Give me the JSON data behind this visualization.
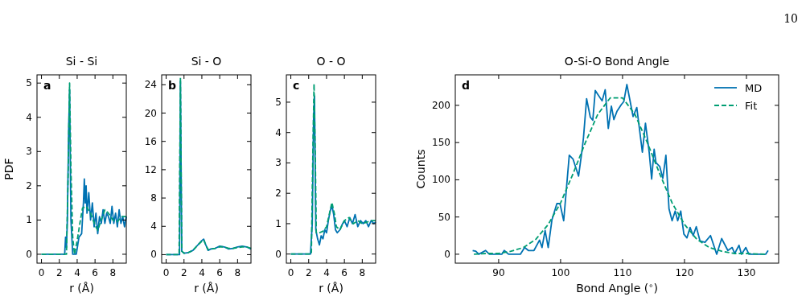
{
  "chart_data": [
    {
      "type": "line",
      "title": "Si - Si",
      "xlabel": "r (Å)",
      "ylabel": "PDF",
      "annotations": [
        "a"
      ],
      "xlim": [
        -0.5,
        9.5
      ],
      "xticks": [
        0,
        2,
        4,
        6,
        8
      ],
      "ylim": [
        -0.26,
        5.24
      ],
      "yticks": [
        0,
        1,
        2,
        3,
        4,
        5
      ],
      "series": [
        {
          "color": "#0072b2",
          "line_style": "solid",
          "x": [
            0,
            2.6,
            2.7,
            2.8,
            2.9,
            3.05,
            3.15,
            3.3,
            3.5,
            3.9,
            4.2,
            4.5,
            4.7,
            4.8,
            4.9,
            5.0,
            5.1,
            5.3,
            5.5,
            5.7,
            5.9,
            6.1,
            6.3,
            6.5,
            6.7,
            6.9,
            7.1,
            7.3,
            7.5,
            7.7,
            7.9,
            8.1,
            8.3,
            8.5,
            8.7,
            8.9,
            9.1,
            9.3,
            9.5
          ],
          "values": [
            0,
            0,
            0.5,
            0.2,
            1,
            3.7,
            4.8,
            1,
            0,
            0,
            0.5,
            0.6,
            1.5,
            2.2,
            1.5,
            2,
            1.2,
            1.8,
            1,
            1.5,
            0.8,
            1.2,
            0.6,
            1.1,
            0.9,
            1.3,
            0.9,
            1.2,
            1.1,
            0.9,
            1.4,
            0.9,
            1.2,
            0.8,
            1.3,
            0.9,
            1.1,
            0.8,
            1.1
          ]
        },
        {
          "color": "#009e73",
          "line_style": "dashed",
          "x": [
            0,
            2.8,
            3.0,
            3.15,
            3.3,
            3.5,
            3.7,
            4.0,
            4.3,
            4.6,
            5.0,
            5.5,
            6.0,
            6.3,
            6.7,
            7.1,
            7.5,
            8.0,
            8.5,
            9.0,
            9.5
          ],
          "values": [
            0,
            0,
            2.5,
            5,
            2.5,
            0.5,
            0,
            0.4,
            0.9,
            1.35,
            1.4,
            1.2,
            0.85,
            0.7,
            1,
            1.3,
            1.2,
            1,
            0.95,
            1.1,
            1.1
          ]
        }
      ]
    },
    {
      "type": "line",
      "title": "Si - O",
      "xlabel": "r (Å)",
      "annotations": [
        "b"
      ],
      "xlim": [
        -0.5,
        9.5
      ],
      "xticks": [
        0,
        2,
        4,
        6,
        8
      ],
      "ylim": [
        -1.2,
        25.4
      ],
      "yticks": [
        0,
        4,
        8,
        12,
        16,
        20,
        24
      ],
      "series": [
        {
          "color": "#0072b2",
          "line_style": "solid",
          "x": [
            0,
            1.5,
            1.6,
            1.75,
            2.0,
            2.5,
            3.0,
            3.5,
            4.0,
            4.2,
            4.4,
            4.7,
            5.0,
            5.5,
            6.0,
            6.5,
            7.0,
            7.5,
            8.0,
            8.5,
            9.0,
            9.5
          ],
          "values": [
            0,
            0,
            24.5,
            0.5,
            0.2,
            0.3,
            0.6,
            1.3,
            2,
            2.2,
            1.5,
            0.6,
            0.8,
            0.9,
            1.2,
            1.1,
            0.8,
            0.9,
            1.1,
            1.2,
            1.1,
            0.8
          ]
        },
        {
          "color": "#009e73",
          "line_style": "dashed",
          "x": [
            0,
            1.45,
            1.6,
            1.75,
            2.0,
            2.5,
            3.0,
            3.5,
            4.0,
            4.2,
            4.4,
            4.7,
            5.0,
            5.5,
            6.0,
            6.5,
            7.0,
            7.5,
            8.0,
            8.5,
            9.0,
            9.5
          ],
          "values": [
            0,
            0,
            25,
            0.5,
            0.2,
            0.3,
            0.6,
            1.3,
            1.9,
            2.1,
            1.5,
            0.7,
            0.8,
            0.9,
            1.1,
            1.1,
            0.9,
            0.9,
            1,
            1.1,
            1.1,
            0.9
          ]
        }
      ]
    },
    {
      "type": "line",
      "title": "O - O",
      "xlabel": "r (Å)",
      "annotations": [
        "c"
      ],
      "xlim": [
        -0.5,
        9.5
      ],
      "xticks": [
        0,
        2,
        4,
        6,
        8
      ],
      "ylim": [
        -0.3,
        5.9
      ],
      "yticks": [
        0,
        1,
        2,
        3,
        4,
        5
      ],
      "series": [
        {
          "color": "#0072b2",
          "line_style": "solid",
          "x": [
            0,
            2.2,
            2.4,
            2.55,
            2.65,
            2.8,
            3.0,
            3.2,
            3.4,
            3.6,
            3.8,
            4.0,
            4.2,
            4.4,
            4.6,
            4.8,
            5.0,
            5.2,
            5.5,
            5.8,
            6.0,
            6.3,
            6.6,
            6.9,
            7.2,
            7.5,
            7.8,
            8.1,
            8.4,
            8.7,
            9.0,
            9.3,
            9.5
          ],
          "values": [
            0,
            0,
            1,
            4.5,
            5.2,
            0.8,
            0.5,
            0.3,
            0.6,
            0.5,
            0.8,
            0.7,
            1.1,
            1.4,
            1.6,
            1.3,
            0.8,
            0.7,
            0.8,
            1,
            1.1,
            0.9,
            1.2,
            1,
            1.3,
            0.9,
            1.1,
            1,
            1.1,
            0.9,
            1.1,
            1,
            1.05
          ]
        },
        {
          "color": "#009e73",
          "line_style": "dashed",
          "x": [
            0,
            2.3,
            2.45,
            2.6,
            2.75,
            2.85,
            3.2,
            3.6,
            4.0,
            4.3,
            4.6,
            4.9,
            5.1,
            5.5,
            6.0,
            6.5,
            7.0,
            7.5,
            8.0,
            8.5,
            9.0,
            9.5
          ],
          "values": [
            0,
            0,
            3,
            5.6,
            3,
            0.7,
            0.7,
            0.75,
            0.9,
            1.3,
            1.7,
            1.3,
            0.9,
            0.8,
            1.1,
            1.2,
            1,
            1.1,
            1,
            1.05,
            1.1,
            1.1
          ]
        }
      ]
    },
    {
      "type": "line",
      "title": "O-Si-O Bond Angle",
      "xlabel": "Bond Angle ($^{∘}$)",
      "ylabel": "Counts",
      "annotations": [
        "d",
        "10"
      ],
      "legend": "top right",
      "xlim": [
        83,
        135.2
      ],
      "xticks": [
        90,
        100,
        110,
        120,
        130
      ],
      "ylim": [
        -12,
        241
      ],
      "yticks": [
        0,
        50,
        100,
        150,
        200
      ],
      "series": [
        {
          "name": "MD",
          "color": "#0072b2",
          "line_style": "solid",
          "x": [
            85.8,
            86.3,
            86.8,
            87.9,
            88.5,
            90.5,
            90.9,
            91.6,
            93.5,
            94.2,
            94.8,
            95.7,
            96.6,
            97.0,
            97.5,
            98.0,
            98.6,
            99.4,
            99.9,
            100.5,
            101.4,
            102.0,
            102.9,
            103.5,
            103.7,
            104.2,
            104.8,
            105.2,
            105.6,
            106.7,
            107.2,
            107.7,
            108.2,
            108.6,
            109.1,
            109.8,
            110.2,
            110.7,
            111.7,
            112.3,
            113.2,
            113.7,
            114.3,
            114.7,
            115.1,
            115.4,
            116.0,
            116.5,
            117.0,
            117.5,
            118.0,
            118.5,
            118.9,
            119.4,
            119.9,
            120.4,
            120.9,
            121.4,
            121.9,
            122.5,
            123.3,
            124.2,
            125.2,
            126.0,
            127.0,
            127.7,
            128.1,
            128.8,
            129.2,
            129.9,
            130.4,
            133.1,
            133.5
          ],
          "values": [
            5,
            4,
            0,
            5,
            0,
            0,
            5,
            0,
            0,
            9,
            5,
            5,
            19,
            9,
            32,
            9,
            46,
            68,
            68,
            45,
            133,
            128,
            105,
            142,
            157,
            209,
            184,
            180,
            220,
            206,
            221,
            169,
            199,
            181,
            192,
            201,
            205,
            228,
            185,
            197,
            137,
            176,
            137,
            101,
            141,
            123,
            118,
            102,
            133,
            61,
            45,
            58,
            45,
            58,
            27,
            22,
            36,
            25,
            37,
            18,
            16,
            25,
            0,
            21,
            5,
            9,
            1,
            12,
            0,
            9,
            0,
            0,
            5
          ]
        },
        {
          "name": "Fit",
          "color": "#009e73",
          "line_style": "dashed",
          "x": [
            86,
            88,
            90,
            92,
            94,
            96,
            98,
            100,
            102,
            104,
            106,
            108,
            110,
            112,
            114,
            116,
            118,
            120,
            122,
            124,
            126,
            128,
            130,
            133
          ],
          "values": [
            0,
            1,
            1,
            4,
            9,
            20,
            40,
            69,
            108,
            150,
            188,
            210,
            210,
            188,
            150,
            108,
            69,
            40,
            20,
            9,
            4,
            1,
            1,
            0
          ]
        }
      ]
    }
  ]
}
